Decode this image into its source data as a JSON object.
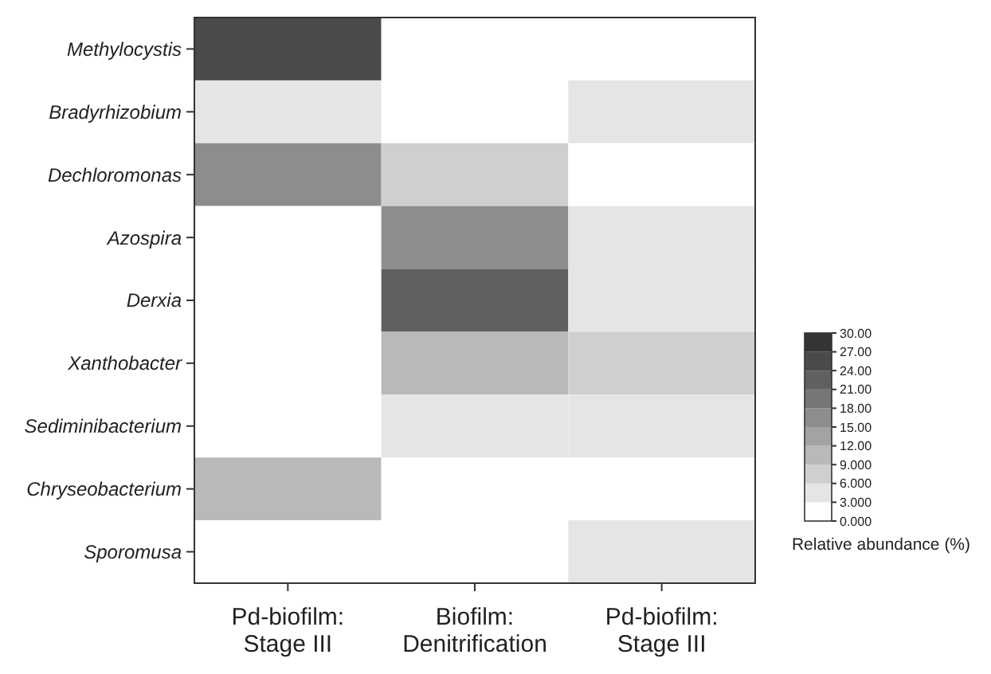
{
  "chart_data": {
    "type": "heatmap",
    "categories": [
      "Pd-biofilm:\nStage III",
      "Biofilm:\nDenitrification",
      "Pd-biofilm:\nStage III"
    ],
    "y_categories": [
      "Methylocystis",
      "Bradyrhizobium",
      "Dechloromonas",
      "Azospira",
      "Derxia",
      "Xanthobacter",
      "Sediminibacterium",
      "Chryseobacterium",
      "Sporomusa"
    ],
    "cells": [
      [
        25.5,
        0,
        0
      ],
      [
        4.5,
        0,
        4.5
      ],
      [
        16.5,
        7.5,
        0
      ],
      [
        0,
        16.5,
        4.5
      ],
      [
        0,
        22.5,
        4.5
      ],
      [
        0,
        10.5,
        7.5
      ],
      [
        0,
        4.5,
        4.5
      ],
      [
        10.5,
        0,
        0
      ],
      [
        0,
        0,
        4.5
      ]
    ],
    "clim": [
      0,
      30
    ],
    "cticks": [
      {
        "value": 0,
        "label": "0.000"
      },
      {
        "value": 3,
        "label": "3.000"
      },
      {
        "value": 6,
        "label": "6.000"
      },
      {
        "value": 9,
        "label": "9.000"
      },
      {
        "value": 12,
        "label": "12.00"
      },
      {
        "value": 15,
        "label": "15.00"
      },
      {
        "value": 18,
        "label": "18.00"
      },
      {
        "value": 21,
        "label": "21.00"
      },
      {
        "value": 24,
        "label": "24.00"
      },
      {
        "value": 27,
        "label": "27.00"
      },
      {
        "value": 30,
        "label": "30.00"
      }
    ],
    "clabel": "Relative abundance (%)"
  }
}
